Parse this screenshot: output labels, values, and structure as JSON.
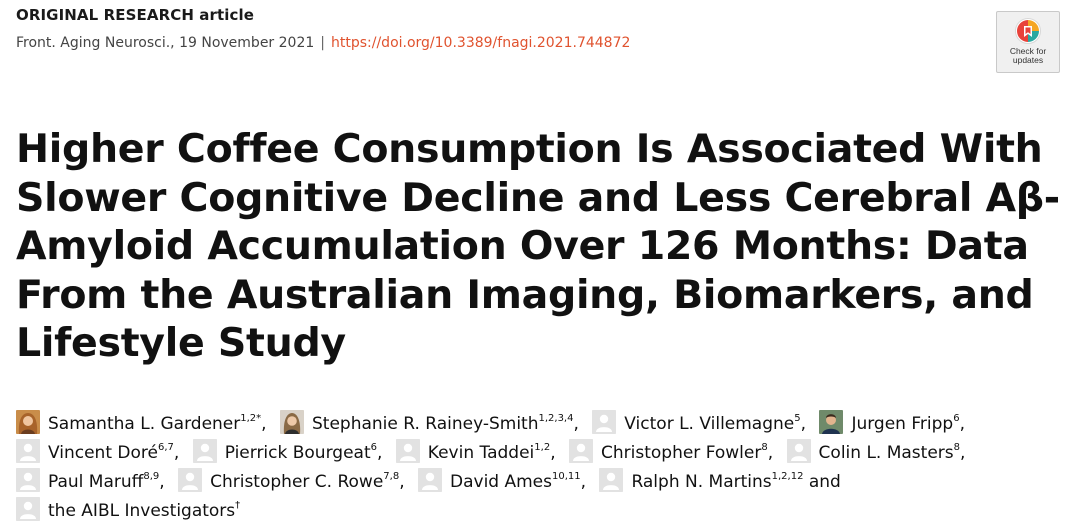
{
  "header": {
    "article_type": "ORIGINAL RESEARCH article",
    "journal": "Front. Aging Neurosci.,",
    "date": "19 November 2021",
    "separator": "|",
    "doi": "https://doi.org/10.3389/fnagi.2021.744872",
    "check_updates_label": "Check for updates"
  },
  "title": "Higher Coffee Consumption Is Associated With Slower Cognitive Decline and Less Cerebral Aβ-Amyloid Accumulation Over 126 Months: Data From the Australian Imaging, Biomarkers, and Lifestyle Study",
  "authors": [
    {
      "name": "Samantha L. Gardener",
      "sup": "1,2*",
      "avatar": "photo-female-1",
      "sep": ","
    },
    {
      "name": "Stephanie R. Rainey-Smith",
      "sup": "1,2,3,4",
      "avatar": "photo-female-2",
      "sep": ","
    },
    {
      "name": "Victor L. Villemagne",
      "sup": "5",
      "avatar": "placeholder",
      "sep": ","
    },
    {
      "name": "Jurgen Fripp",
      "sup": "6",
      "avatar": "photo-male",
      "sep": ","
    },
    {
      "name": "Vincent Doré",
      "sup": "6,7",
      "avatar": "placeholder",
      "sep": ","
    },
    {
      "name": "Pierrick Bourgeat",
      "sup": "6",
      "avatar": "placeholder",
      "sep": ","
    },
    {
      "name": "Kevin Taddei",
      "sup": "1,2",
      "avatar": "placeholder",
      "sep": ","
    },
    {
      "name": "Christopher Fowler",
      "sup": "8",
      "avatar": "placeholder",
      "sep": ","
    },
    {
      "name": "Colin L. Masters",
      "sup": "8",
      "avatar": "placeholder",
      "sep": ","
    },
    {
      "name": "Paul Maruff",
      "sup": "8,9",
      "avatar": "placeholder",
      "sep": ","
    },
    {
      "name": "Christopher C. Rowe",
      "sup": "7,8",
      "avatar": "placeholder",
      "sep": ","
    },
    {
      "name": "David Ames",
      "sup": "10,11",
      "avatar": "placeholder",
      "sep": ","
    },
    {
      "name": "Ralph N. Martins",
      "sup": "1,2,12",
      "avatar": "placeholder",
      "sep": " and"
    },
    {
      "name": "the AIBL Investigators",
      "sup": "†",
      "avatar": "placeholder",
      "sep": ""
    }
  ]
}
